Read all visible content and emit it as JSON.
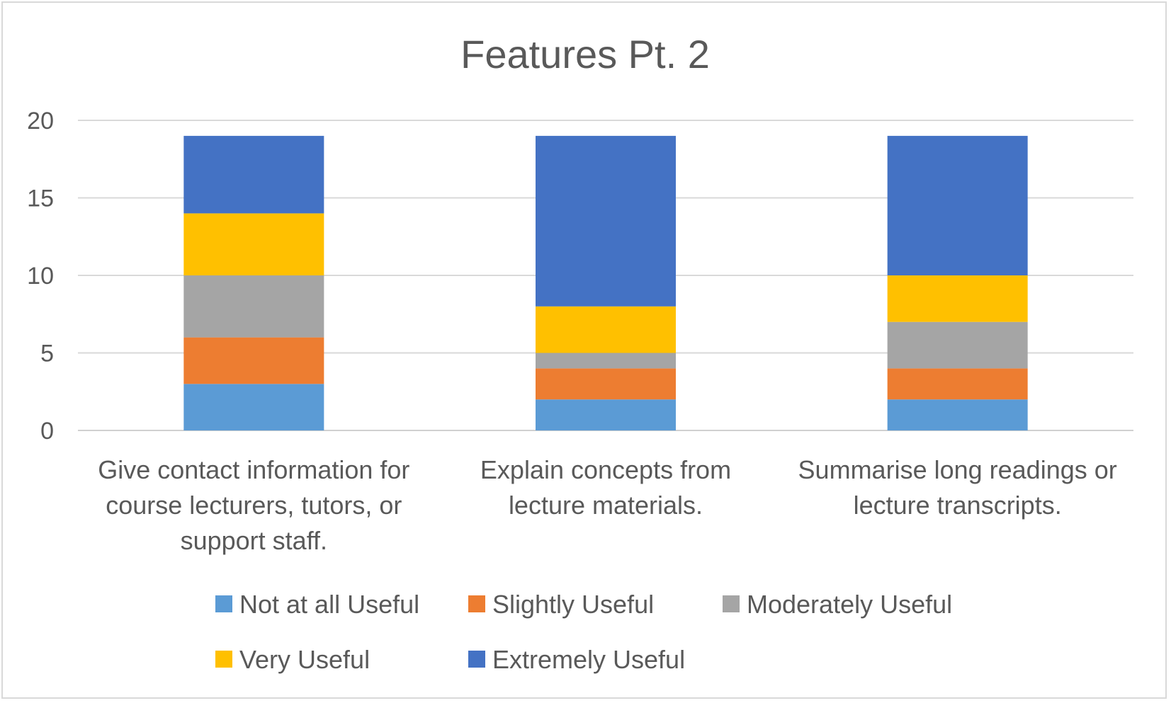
{
  "chart_data": {
    "type": "bar",
    "stacked": true,
    "title": "Features Pt. 2",
    "categories": [
      "Give contact information for course lecturers, tutors, or support staff.",
      "Explain concepts from lecture materials.",
      "Summarise long readings or lecture transcripts."
    ],
    "category_lines": [
      [
        "Give contact information for",
        "course lecturers, tutors, or",
        "support staff."
      ],
      [
        "Explain concepts from",
        "lecture materials."
      ],
      [
        "Summarise long readings or",
        "lecture transcripts."
      ]
    ],
    "series": [
      {
        "name": "Not at all Useful",
        "color": "#5b9bd5",
        "values": [
          3,
          2,
          2
        ]
      },
      {
        "name": "Slightly Useful",
        "color": "#ed7d31",
        "values": [
          3,
          2,
          2
        ]
      },
      {
        "name": "Moderately Useful",
        "color": "#a5a5a5",
        "values": [
          4,
          1,
          3
        ]
      },
      {
        "name": "Very Useful",
        "color": "#ffc000",
        "values": [
          4,
          3,
          3
        ]
      },
      {
        "name": "Extremely Useful",
        "color": "#4472c4",
        "values": [
          5,
          11,
          9
        ]
      }
    ],
    "ylim": [
      0,
      20
    ],
    "yticks": [
      0,
      5,
      10,
      15,
      20
    ],
    "grid": true,
    "legend_position": "bottom"
  }
}
